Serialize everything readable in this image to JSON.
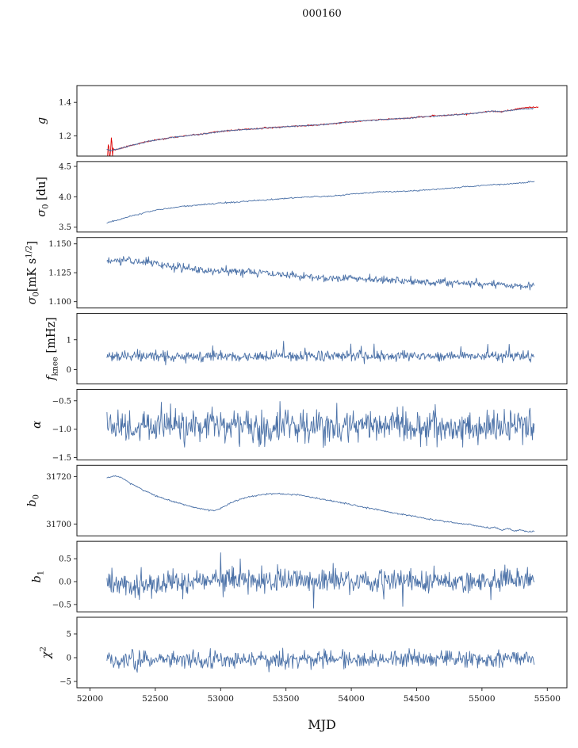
{
  "title": "000160",
  "x_axis": {
    "label": "MJD",
    "ticks": [
      {
        "value": 52000,
        "label": "52000"
      },
      {
        "value": 52500,
        "label": "52500"
      },
      {
        "value": 53000,
        "label": "53000"
      },
      {
        "value": 53500,
        "label": "53500"
      },
      {
        "value": 54000,
        "label": "54000"
      },
      {
        "value": 54500,
        "label": "54500"
      },
      {
        "value": 55000,
        "label": "55000"
      },
      {
        "value": 55500,
        "label": "55500"
      }
    ]
  },
  "xlim": [
    51900,
    55650
  ],
  "colors": {
    "data_line": "#4c72a8",
    "fit_line": "#dd0000",
    "axis": "#1a1a1a",
    "text": "#111111"
  },
  "chart_data": [
    {
      "name": "g",
      "type": "line",
      "ylabel_parts": [
        {
          "text": "g",
          "italic": true
        }
      ],
      "ylim": [
        1.08,
        1.5
      ],
      "yticks": [
        {
          "value": 1.4,
          "label": "1.4"
        },
        {
          "value": 1.2,
          "label": "1.2"
        }
      ],
      "series": [
        {
          "name": "gain-fit",
          "color": "#dd0000",
          "noise": 0.002,
          "seed": 11,
          "n": 700,
          "burst": {
            "until": 52180,
            "amp": 0.05
          },
          "anchors": [
            [
              52130,
              1.118
            ],
            [
              52155,
              1.112
            ],
            [
              52230,
              1.125
            ],
            [
              52320,
              1.145
            ],
            [
              52420,
              1.163
            ],
            [
              52520,
              1.178
            ],
            [
              52620,
              1.19
            ],
            [
              52750,
              1.202
            ],
            [
              52900,
              1.215
            ],
            [
              53000,
              1.227
            ],
            [
              53100,
              1.234
            ],
            [
              53250,
              1.242
            ],
            [
              53400,
              1.25
            ],
            [
              53550,
              1.258
            ],
            [
              53700,
              1.263
            ],
            [
              53850,
              1.272
            ],
            [
              54000,
              1.284
            ],
            [
              54150,
              1.293
            ],
            [
              54300,
              1.301
            ],
            [
              54450,
              1.307
            ],
            [
              54600,
              1.317
            ],
            [
              54750,
              1.324
            ],
            [
              54900,
              1.332
            ],
            [
              55000,
              1.34
            ],
            [
              55080,
              1.348
            ],
            [
              55150,
              1.344
            ],
            [
              55220,
              1.352
            ],
            [
              55300,
              1.366
            ],
            [
              55430,
              1.372
            ]
          ]
        },
        {
          "name": "gain-data",
          "color": "#4c72a8",
          "noise": 0.0018,
          "seed": 12,
          "n": 700,
          "anchors": [
            [
              52130,
              1.118
            ],
            [
              52155,
              1.112
            ],
            [
              52230,
              1.125
            ],
            [
              52320,
              1.145
            ],
            [
              52420,
              1.163
            ],
            [
              52520,
              1.178
            ],
            [
              52620,
              1.19
            ],
            [
              52750,
              1.202
            ],
            [
              52900,
              1.215
            ],
            [
              53000,
              1.227
            ],
            [
              53100,
              1.234
            ],
            [
              53250,
              1.242
            ],
            [
              53400,
              1.25
            ],
            [
              53550,
              1.258
            ],
            [
              53700,
              1.263
            ],
            [
              53850,
              1.272
            ],
            [
              54000,
              1.284
            ],
            [
              54150,
              1.293
            ],
            [
              54300,
              1.301
            ],
            [
              54450,
              1.307
            ],
            [
              54600,
              1.317
            ],
            [
              54750,
              1.324
            ],
            [
              54900,
              1.332
            ],
            [
              55000,
              1.34
            ],
            [
              55080,
              1.348
            ],
            [
              55150,
              1.344
            ],
            [
              55220,
              1.352
            ],
            [
              55300,
              1.36
            ],
            [
              55395,
              1.363
            ]
          ]
        }
      ]
    },
    {
      "name": "sigma0-du",
      "type": "line",
      "ylabel_parts": [
        {
          "text": "σ",
          "italic": true
        },
        {
          "text": "0",
          "sub": true
        },
        {
          "text": " [du]"
        }
      ],
      "ylim": [
        3.42,
        4.58
      ],
      "yticks": [
        {
          "value": 4.5,
          "label": "4.5"
        },
        {
          "value": 4.0,
          "label": "4.0"
        },
        {
          "value": 3.5,
          "label": "3.5"
        }
      ],
      "series": [
        {
          "name": "sigma0-du",
          "color": "#4c72a8",
          "noise": 0.006,
          "seed": 21,
          "n": 520,
          "anchors": [
            [
              52130,
              3.575
            ],
            [
              52250,
              3.64
            ],
            [
              52400,
              3.73
            ],
            [
              52500,
              3.78
            ],
            [
              52600,
              3.81
            ],
            [
              52700,
              3.84
            ],
            [
              52800,
              3.86
            ],
            [
              52900,
              3.875
            ],
            [
              53000,
              3.9
            ],
            [
              53100,
              3.91
            ],
            [
              53200,
              3.925
            ],
            [
              53350,
              3.95
            ],
            [
              53500,
              3.975
            ],
            [
              53650,
              3.995
            ],
            [
              53800,
              4.01
            ],
            [
              53900,
              4.02
            ],
            [
              54000,
              4.045
            ],
            [
              54100,
              4.06
            ],
            [
              54200,
              4.08
            ],
            [
              54300,
              4.085
            ],
            [
              54400,
              4.09
            ],
            [
              54500,
              4.1
            ],
            [
              54600,
              4.115
            ],
            [
              54700,
              4.13
            ],
            [
              54800,
              4.15
            ],
            [
              54900,
              4.17
            ],
            [
              55000,
              4.185
            ],
            [
              55100,
              4.2
            ],
            [
              55200,
              4.21
            ],
            [
              55300,
              4.225
            ],
            [
              55400,
              4.25
            ]
          ]
        }
      ]
    },
    {
      "name": "sigma0-mk",
      "type": "line",
      "ylabel_parts": [
        {
          "text": "σ",
          "italic": true
        },
        {
          "text": "0",
          "sub": true
        },
        {
          "text": "[mK s"
        },
        {
          "text": "1/2",
          "sup": true
        },
        {
          "text": "]"
        }
      ],
      "ylim": [
        1.0945,
        1.1555
      ],
      "yticks": [
        {
          "value": 1.15,
          "label": "1.150"
        },
        {
          "value": 1.125,
          "label": "1.125"
        },
        {
          "value": 1.1,
          "label": "1.100"
        }
      ],
      "series": [
        {
          "name": "sigma0-mk",
          "color": "#4c72a8",
          "noise": 0.0017,
          "seed": 31,
          "n": 700,
          "anchors": [
            [
              52130,
              1.1345
            ],
            [
              52250,
              1.136
            ],
            [
              52350,
              1.1355
            ],
            [
              52450,
              1.134
            ],
            [
              52550,
              1.132
            ],
            [
              52650,
              1.13
            ],
            [
              52750,
              1.1285
            ],
            [
              52850,
              1.127
            ],
            [
              52950,
              1.1265
            ],
            [
              53050,
              1.126
            ],
            [
              53150,
              1.1265
            ],
            [
              53250,
              1.126
            ],
            [
              53350,
              1.1245
            ],
            [
              53450,
              1.123
            ],
            [
              53550,
              1.1225
            ],
            [
              53700,
              1.1215
            ],
            [
              53850,
              1.1205
            ],
            [
              54000,
              1.1205
            ],
            [
              54150,
              1.1195
            ],
            [
              54300,
              1.119
            ],
            [
              54500,
              1.117
            ],
            [
              54700,
              1.1165
            ],
            [
              54900,
              1.116
            ],
            [
              55100,
              1.115
            ],
            [
              55250,
              1.1145
            ],
            [
              55400,
              1.1135
            ]
          ]
        }
      ]
    },
    {
      "name": "fknee",
      "type": "line",
      "ylabel_parts": [
        {
          "text": "f",
          "italic": true
        },
        {
          "text": "knee",
          "sub": true
        },
        {
          "text": " [mHz]"
        }
      ],
      "ylim": [
        -0.48,
        1.88
      ],
      "yticks": [
        {
          "value": 1,
          "label": "1"
        },
        {
          "value": 0,
          "label": "0"
        }
      ],
      "series": [
        {
          "name": "fknee",
          "color": "#4c72a8",
          "noise": 0.085,
          "seed": 41,
          "n": 700,
          "spikes": {
            "p": 0.012,
            "amp": 0.45,
            "up": 0.85
          },
          "anchors": [
            [
              52130,
              0.45
            ],
            [
              53000,
              0.43
            ],
            [
              54000,
              0.46
            ],
            [
              55400,
              0.44
            ]
          ]
        }
      ]
    },
    {
      "name": "alpha",
      "type": "line",
      "ylabel_parts": [
        {
          "text": "α",
          "italic": true
        }
      ],
      "ylim": [
        -1.54,
        -0.3
      ],
      "yticks": [
        {
          "value": -0.5,
          "label": "−0.5"
        },
        {
          "value": -1.0,
          "label": "−1.0"
        },
        {
          "value": -1.5,
          "label": "−1.5"
        }
      ],
      "series": [
        {
          "name": "alpha",
          "color": "#4c72a8",
          "noise": 0.14,
          "seed": 51,
          "n": 700,
          "spikes": {
            "p": 0.01,
            "amp": 0.3,
            "up": 0.5
          },
          "anchors": [
            [
              52130,
              -0.95
            ],
            [
              53500,
              -0.96
            ],
            [
              54500,
              -0.94
            ],
            [
              55400,
              -0.95
            ]
          ]
        }
      ]
    },
    {
      "name": "b0",
      "type": "line",
      "ylabel_parts": [
        {
          "text": "b",
          "italic": true
        },
        {
          "text": "0",
          "sub": true
        }
      ],
      "ylim": [
        31695,
        31724.7
      ],
      "yticks": [
        {
          "value": 31720,
          "label": "31720"
        },
        {
          "value": 31700,
          "label": "31700"
        }
      ],
      "series": [
        {
          "name": "b0",
          "color": "#4c72a8",
          "noise": 0.16,
          "seed": 61,
          "n": 600,
          "anchors": [
            [
              52130,
              31719.5
            ],
            [
              52180,
              31720.2
            ],
            [
              52230,
              31719.8
            ],
            [
              52300,
              31717.5
            ],
            [
              52400,
              31714.5
            ],
            [
              52500,
              31712
            ],
            [
              52600,
              31710
            ],
            [
              52700,
              31708.5
            ],
            [
              52800,
              31707
            ],
            [
              52900,
              31706
            ],
            [
              52950,
              31705.6
            ],
            [
              53000,
              31706.5
            ],
            [
              53050,
              31708
            ],
            [
              53100,
              31709.5
            ],
            [
              53200,
              31711.2
            ],
            [
              53300,
              31712.2
            ],
            [
              53400,
              31712.8
            ],
            [
              53500,
              31712.5
            ],
            [
              53600,
              31712.2
            ],
            [
              53700,
              31711.2
            ],
            [
              53800,
              31710.2
            ],
            [
              53900,
              31709.2
            ],
            [
              54000,
              31708.2
            ],
            [
              54100,
              31707
            ],
            [
              54200,
              31706
            ],
            [
              54300,
              31705
            ],
            [
              54400,
              31704
            ],
            [
              54500,
              31703
            ],
            [
              54600,
              31702
            ],
            [
              54700,
              31701.2
            ],
            [
              54800,
              31700.4
            ],
            [
              54900,
              31699.8
            ],
            [
              55000,
              31698.8
            ],
            [
              55050,
              31698.3
            ],
            [
              55100,
              31698.6
            ],
            [
              55150,
              31697.4
            ],
            [
              55200,
              31698.2
            ],
            [
              55250,
              31697
            ],
            [
              55300,
              31697.6
            ],
            [
              55350,
              31696.6
            ],
            [
              55400,
              31696.9
            ]
          ]
        }
      ]
    },
    {
      "name": "b1",
      "type": "line",
      "ylabel_parts": [
        {
          "text": "b",
          "italic": true
        },
        {
          "text": "1",
          "sub": true
        }
      ],
      "ylim": [
        -0.66,
        0.88
      ],
      "yticks": [
        {
          "value": 0.5,
          "label": "0.5"
        },
        {
          "value": 0.0,
          "label": "0.0"
        },
        {
          "value": -0.5,
          "label": "−0.5"
        }
      ],
      "series": [
        {
          "name": "b1",
          "color": "#4c72a8",
          "noise": 0.13,
          "seed": 71,
          "n": 700,
          "spikes": {
            "p": 0.012,
            "amp": 0.6,
            "up": 0.5
          },
          "anchors": [
            [
              52130,
              0.02
            ],
            [
              52300,
              -0.08
            ],
            [
              52600,
              -0.05
            ],
            [
              53000,
              0.05
            ],
            [
              53500,
              0.02
            ],
            [
              54000,
              0.0
            ],
            [
              54500,
              0.02
            ],
            [
              55000,
              0.0
            ],
            [
              55400,
              0.05
            ]
          ]
        }
      ]
    },
    {
      "name": "chi2",
      "type": "line",
      "ylabel_parts": [
        {
          "text": "χ",
          "italic": true
        },
        {
          "text": "2",
          "sup": true
        }
      ],
      "ylim": [
        -6.33,
        8.5
      ],
      "yticks": [
        {
          "value": 5,
          "label": "5"
        },
        {
          "value": 0,
          "label": "0"
        },
        {
          "value": -5,
          "label": "−5"
        }
      ],
      "series": [
        {
          "name": "chi2",
          "color": "#4c72a8",
          "noise": 0.9,
          "seed": 81,
          "n": 650,
          "spikes": {
            "p": 0.008,
            "amp": 2.2,
            "up": 0.5
          },
          "anchors": [
            [
              52130,
              -0.4
            ],
            [
              53500,
              -0.5
            ],
            [
              54500,
              -0.3
            ],
            [
              55400,
              -0.3
            ]
          ]
        }
      ]
    }
  ]
}
